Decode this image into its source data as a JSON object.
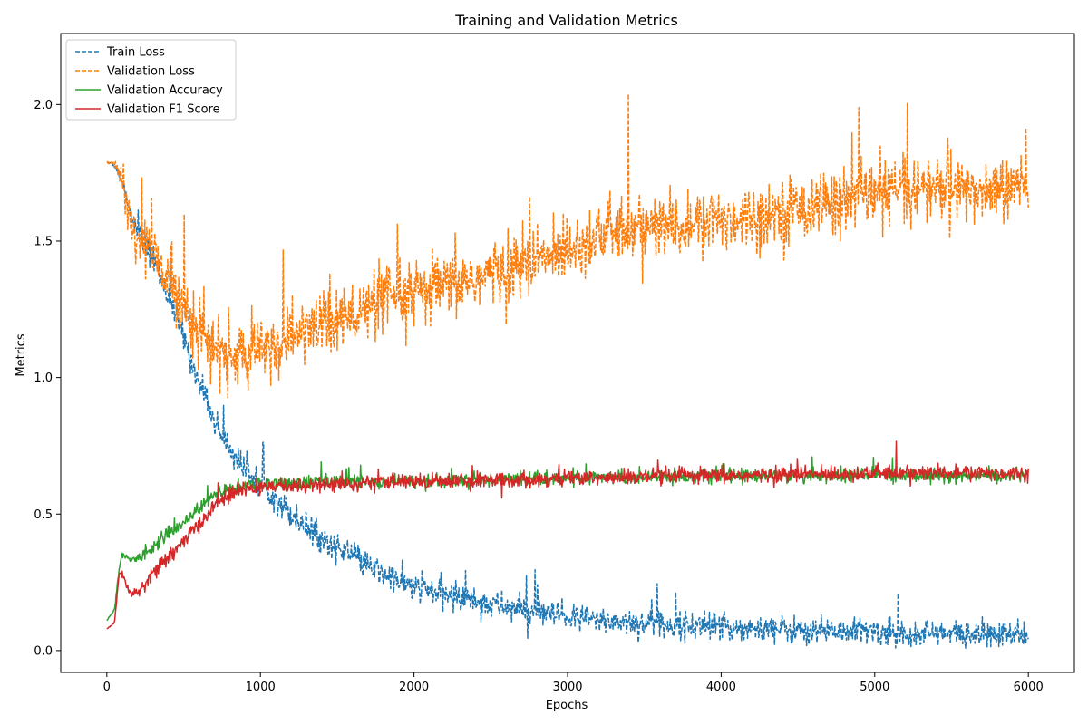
{
  "chart_data": {
    "type": "line",
    "title": "Training and Validation Metrics",
    "xlabel": "Epochs",
    "ylabel": "Metrics",
    "xlim": [
      -300,
      6300
    ],
    "ylim": [
      -0.08,
      2.26
    ],
    "xticks": [
      0,
      1000,
      2000,
      3000,
      4000,
      5000,
      6000
    ],
    "xtick_labels": [
      "0",
      "1000",
      "2000",
      "3000",
      "4000",
      "5000",
      "6000"
    ],
    "yticks": [
      0.0,
      0.5,
      1.0,
      1.5,
      2.0
    ],
    "ytick_labels": [
      "0.0",
      "0.5",
      "1.0",
      "1.5",
      "2.0"
    ],
    "grid": false,
    "legend_position": "top-left",
    "series": [
      {
        "name": "Train Loss",
        "color": "#1f77b4",
        "style": "dashed",
        "x": [
          0,
          50,
          100,
          150,
          200,
          300,
          400,
          500,
          600,
          700,
          800,
          900,
          1000,
          1200,
          1400,
          1600,
          1800,
          2000,
          2500,
          3000,
          3500,
          4000,
          4500,
          5000,
          5500,
          6000
        ],
        "y": [
          1.79,
          1.78,
          1.72,
          1.6,
          1.54,
          1.44,
          1.3,
          1.15,
          0.98,
          0.84,
          0.74,
          0.66,
          0.62,
          0.5,
          0.41,
          0.34,
          0.28,
          0.23,
          0.17,
          0.12,
          0.1,
          0.085,
          0.075,
          0.07,
          0.06,
          0.055
        ],
        "noise": 0.025
      },
      {
        "name": "Validation Loss",
        "color": "#ff7f0e",
        "style": "dashed",
        "x": [
          0,
          50,
          100,
          150,
          200,
          300,
          400,
          500,
          600,
          700,
          800,
          900,
          1000,
          1200,
          1400,
          1600,
          1800,
          2000,
          2200,
          2500,
          2800,
          3000,
          3200,
          3500,
          3800,
          4000,
          4300,
          4600,
          5000,
          5300,
          5600,
          6000
        ],
        "y": [
          1.79,
          1.78,
          1.72,
          1.58,
          1.52,
          1.45,
          1.36,
          1.28,
          1.18,
          1.1,
          1.08,
          1.08,
          1.09,
          1.15,
          1.2,
          1.22,
          1.28,
          1.3,
          1.33,
          1.38,
          1.42,
          1.48,
          1.52,
          1.55,
          1.55,
          1.58,
          1.6,
          1.63,
          1.67,
          1.7,
          1.68,
          1.7
        ],
        "noise": 0.06
      },
      {
        "name": "Validation Accuracy",
        "color": "#2ca02c",
        "style": "solid",
        "x": [
          0,
          50,
          80,
          100,
          150,
          200,
          300,
          400,
          500,
          600,
          700,
          800,
          900,
          1000,
          1500,
          2000,
          3000,
          4000,
          5000,
          6000
        ],
        "y": [
          0.11,
          0.15,
          0.3,
          0.35,
          0.33,
          0.34,
          0.38,
          0.43,
          0.47,
          0.52,
          0.57,
          0.59,
          0.6,
          0.61,
          0.62,
          0.62,
          0.63,
          0.64,
          0.64,
          0.64
        ],
        "noise": 0.012
      },
      {
        "name": "Validation F1 Score",
        "color": "#d62728",
        "style": "solid",
        "x": [
          0,
          50,
          80,
          100,
          150,
          200,
          300,
          400,
          500,
          600,
          700,
          800,
          900,
          1000,
          1500,
          2000,
          3000,
          4000,
          5000,
          6000
        ],
        "y": [
          0.08,
          0.1,
          0.28,
          0.28,
          0.21,
          0.21,
          0.28,
          0.34,
          0.4,
          0.46,
          0.53,
          0.57,
          0.59,
          0.6,
          0.61,
          0.62,
          0.63,
          0.64,
          0.65,
          0.65
        ],
        "noise": 0.014
      }
    ]
  }
}
